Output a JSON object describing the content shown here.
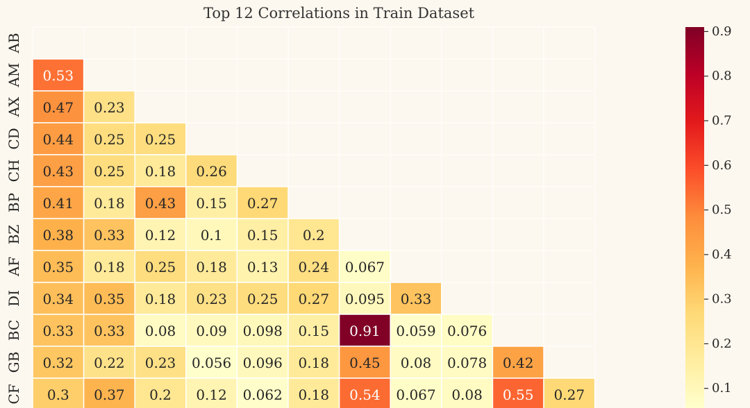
{
  "chart_data": {
    "type": "heatmap",
    "title": "Top 12 Correlations in Train Dataset",
    "row_labels": [
      "AB",
      "AM",
      "AX",
      "CD",
      "CH",
      "BP",
      "BZ",
      "AF",
      "DI",
      "BC",
      "GB",
      "CF"
    ],
    "rows": [
      [],
      [
        "0.53"
      ],
      [
        "0.47",
        "0.23"
      ],
      [
        "0.44",
        "0.25",
        "0.25"
      ],
      [
        "0.43",
        "0.25",
        "0.18",
        "0.26"
      ],
      [
        "0.41",
        "0.18",
        "0.43",
        "0.15",
        "0.27"
      ],
      [
        "0.38",
        "0.33",
        "0.12",
        "0.1",
        "0.15",
        "0.2"
      ],
      [
        "0.35",
        "0.18",
        "0.25",
        "0.18",
        "0.13",
        "0.24",
        "0.067"
      ],
      [
        "0.34",
        "0.35",
        "0.18",
        "0.23",
        "0.25",
        "0.27",
        "0.095",
        "0.33"
      ],
      [
        "0.33",
        "0.33",
        "0.08",
        "0.09",
        "0.098",
        "0.15",
        "0.91",
        "0.059",
        "0.076"
      ],
      [
        "0.32",
        "0.22",
        "0.23",
        "0.056",
        "0.096",
        "0.18",
        "0.45",
        "0.08",
        "0.078",
        "0.42"
      ],
      [
        "0.3",
        "0.37",
        "0.2",
        "0.12",
        "0.062",
        "0.18",
        "0.54",
        "0.067",
        "0.08",
        "0.55",
        "0.27"
      ]
    ],
    "colorbar": {
      "ticks": [
        "0.1",
        "0.2",
        "0.3",
        "0.4",
        "0.5",
        "0.6",
        "0.7",
        "0.8",
        "0.9"
      ],
      "range": [
        0.056,
        0.91
      ],
      "colormap": [
        "#ffffcc",
        "#ffeda0",
        "#fed976",
        "#feb24c",
        "#fd8d3c",
        "#fc4e2a",
        "#e31a1c",
        "#bd0026",
        "#800026"
      ]
    },
    "background": "#fdf8ef"
  }
}
